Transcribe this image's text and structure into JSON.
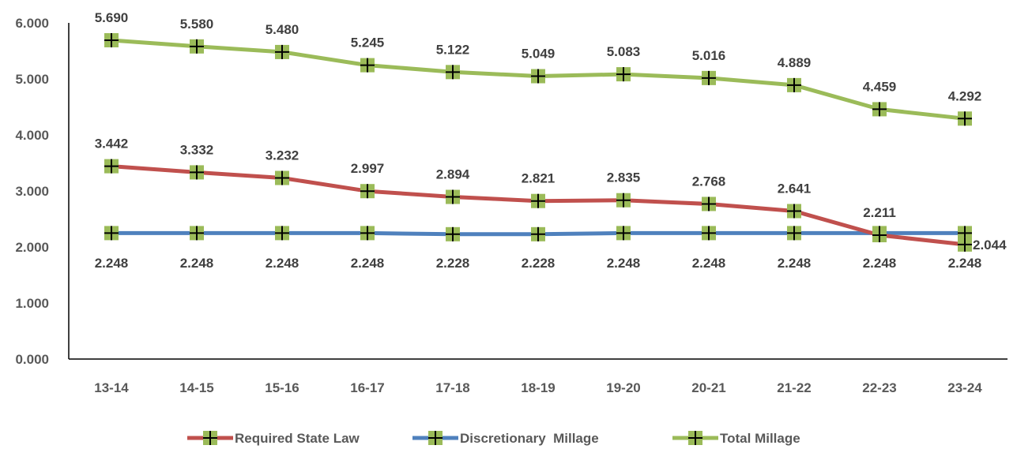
{
  "chart_data": {
    "type": "line",
    "categories": [
      "13-14",
      "14-15",
      "15-16",
      "16-17",
      "17-18",
      "18-19",
      "19-20",
      "20-21",
      "21-22",
      "22-23",
      "23-24"
    ],
    "ylim": [
      0,
      6
    ],
    "yticks": [
      "0.000",
      "1.000",
      "2.000",
      "3.000",
      "4.000",
      "5.000",
      "6.000"
    ],
    "grid": false,
    "legend_position": "bottom",
    "series": [
      {
        "name": "Required State Law",
        "color": "#C0504D",
        "values": [
          3.442,
          3.332,
          3.232,
          2.997,
          2.894,
          2.821,
          2.835,
          2.768,
          2.641,
          2.211,
          2.044
        ],
        "labels": [
          "3.442",
          "3.332",
          "3.232",
          "2.997",
          "2.894",
          "2.821",
          "2.835",
          "2.768",
          "2.641",
          "2.211",
          "2.044"
        ]
      },
      {
        "name": "Discretionary  Millage",
        "color": "#4F81BD",
        "values": [
          2.248,
          2.248,
          2.248,
          2.248,
          2.228,
          2.228,
          2.248,
          2.248,
          2.248,
          2.248,
          2.248
        ],
        "labels": [
          "2.248",
          "2.248",
          "2.248",
          "2.248",
          "2.228",
          "2.228",
          "2.248",
          "2.248",
          "2.248",
          "2.248",
          "2.248"
        ]
      },
      {
        "name": "Total Millage",
        "color": "#9BBB59",
        "values": [
          5.69,
          5.58,
          5.48,
          5.245,
          5.122,
          5.049,
          5.083,
          5.016,
          4.889,
          4.459,
          4.292
        ],
        "labels": [
          "5.690",
          "5.580",
          "5.480",
          "5.245",
          "5.122",
          "5.049",
          "5.083",
          "5.016",
          "4.889",
          "4.459",
          "4.292"
        ]
      }
    ],
    "marker": {
      "fill": "#9BBB59",
      "cross": "#000000"
    }
  }
}
